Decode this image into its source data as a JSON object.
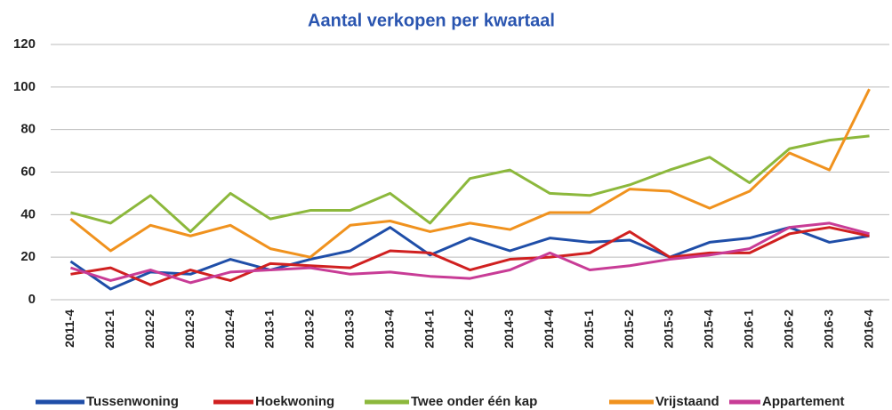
{
  "chart_data": {
    "type": "line",
    "title": "Aantal verkopen per kwartaal",
    "categories": [
      "2011-4",
      "2012-1",
      "2012-2",
      "2012-3",
      "2012-4",
      "2013-1",
      "2013-2",
      "2013-3",
      "2013-4",
      "2014-1",
      "2014-2",
      "2014-3",
      "2014-4",
      "2015-1",
      "2015-2",
      "2015-3",
      "2015-4",
      "2016-1",
      "2016-2",
      "2016-3",
      "2016-4"
    ],
    "series": [
      {
        "name": "Tussenwoning",
        "color": "#1f4ea8",
        "values": [
          18,
          5,
          13,
          12,
          19,
          14,
          19,
          23,
          34,
          21,
          29,
          23,
          29,
          27,
          28,
          20,
          27,
          29,
          34,
          27,
          30
        ]
      },
      {
        "name": "Hoekwoning",
        "color": "#d02020",
        "values": [
          12,
          15,
          7,
          14,
          9,
          17,
          16,
          15,
          23,
          22,
          14,
          19,
          20,
          22,
          32,
          20,
          22,
          22,
          31,
          34,
          30
        ]
      },
      {
        "name": "Twee onder één kap",
        "color": "#8cb83c",
        "values": [
          41,
          36,
          49,
          32,
          50,
          38,
          42,
          42,
          50,
          36,
          57,
          61,
          50,
          49,
          54,
          61,
          67,
          55,
          71,
          75,
          77
        ]
      },
      {
        "name": "Vrijstaand",
        "color": "#f0921e",
        "values": [
          38,
          23,
          35,
          30,
          35,
          24,
          20,
          35,
          37,
          32,
          36,
          33,
          41,
          41,
          52,
          51,
          43,
          51,
          69,
          61,
          99
        ]
      },
      {
        "name": "Appartement",
        "color": "#c83c96",
        "values": [
          15,
          9,
          14,
          8,
          13,
          14,
          15,
          12,
          13,
          11,
          10,
          14,
          22,
          14,
          16,
          19,
          21,
          24,
          34,
          36,
          31
        ]
      }
    ],
    "ylim": [
      0,
      120
    ],
    "yticks": [
      0,
      20,
      40,
      60,
      80,
      100,
      120
    ],
    "grid": true,
    "legend": "bottom"
  }
}
